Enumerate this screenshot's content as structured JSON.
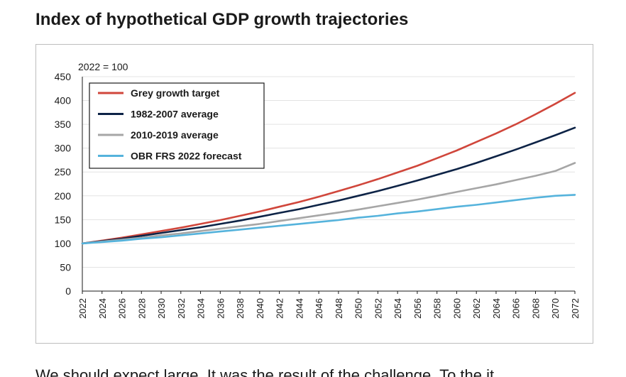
{
  "title": "Index of hypothetical GDP growth trajectories",
  "footer_text": "We should expect large. It was the result of the challenge. To the it",
  "chart_data": {
    "type": "line",
    "title": "Index of hypothetical GDP growth trajectories",
    "ylabel": "2022 = 100",
    "xlabel": "",
    "xlim": [
      2022,
      2072
    ],
    "ylim": [
      0,
      450
    ],
    "yticks": [
      0,
      50,
      100,
      150,
      200,
      250,
      300,
      350,
      400,
      450
    ],
    "xticks": [
      2022,
      2024,
      2026,
      2028,
      2030,
      2032,
      2034,
      2036,
      2038,
      2040,
      2042,
      2044,
      2046,
      2048,
      2050,
      2052,
      2054,
      2056,
      2058,
      2060,
      2062,
      2064,
      2066,
      2068,
      2070,
      2072
    ],
    "grid": true,
    "legend_position": "top-left",
    "x": [
      2022,
      2024,
      2026,
      2028,
      2030,
      2032,
      2034,
      2036,
      2038,
      2040,
      2042,
      2044,
      2046,
      2048,
      2050,
      2052,
      2054,
      2056,
      2058,
      2060,
      2062,
      2064,
      2066,
      2068,
      2070,
      2072
    ],
    "series": [
      {
        "name": "Grey growth target",
        "color": "#d0463b",
        "values": [
          100,
          106,
          112,
          119,
          126,
          133,
          141,
          149,
          158,
          167,
          177,
          187,
          198,
          210,
          222,
          235,
          249,
          263,
          279,
          295,
          313,
          331,
          350,
          371,
          393,
          416
        ]
      },
      {
        "name": "1982-2007 average",
        "color": "#0d2346",
        "values": [
          100,
          105,
          110,
          116,
          122,
          128,
          134,
          141,
          148,
          156,
          164,
          172,
          181,
          190,
          200,
          210,
          221,
          232,
          244,
          256,
          269,
          283,
          297,
          312,
          327,
          343
        ]
      },
      {
        "name": "2010-2019 average",
        "color": "#a6a6a6",
        "values": [
          100,
          104,
          108,
          112,
          117,
          121,
          126,
          131,
          136,
          141,
          147,
          153,
          159,
          165,
          171,
          178,
          185,
          192,
          200,
          208,
          216,
          224,
          233,
          242,
          252,
          269
        ]
      },
      {
        "name": "OBR FRS 2022 forecast",
        "color": "#55b3dc",
        "values": [
          100,
          103,
          106,
          110,
          113,
          117,
          121,
          125,
          129,
          133,
          137,
          141,
          145,
          149,
          154,
          158,
          163,
          167,
          172,
          177,
          181,
          186,
          191,
          196,
          200,
          202
        ]
      }
    ]
  }
}
